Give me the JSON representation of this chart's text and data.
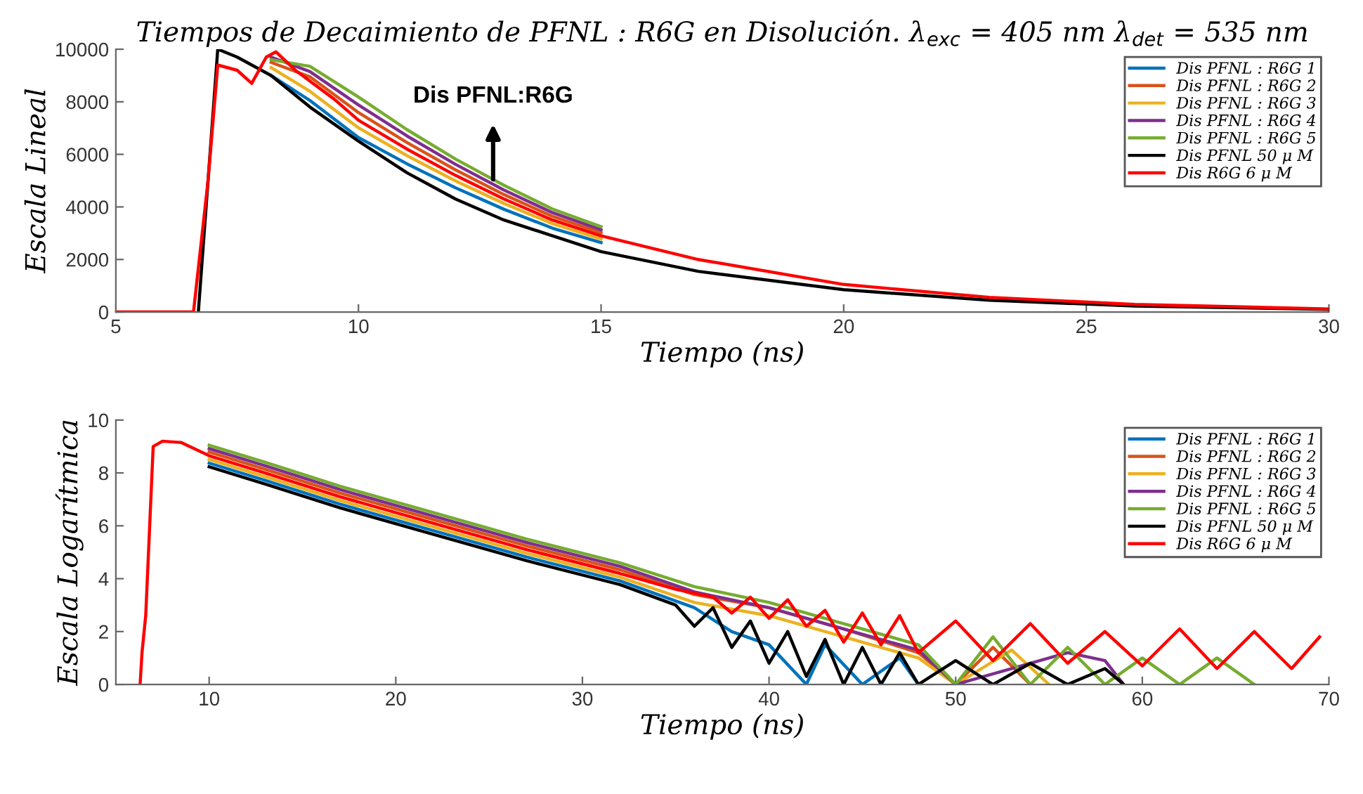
{
  "chart_data": [
    {
      "type": "line",
      "title": "Tiempos de Decaimiento de PFNL : R6G en Disolución. λ$_{exc}$ = 405 nm λ$_{det}$ = 535 nm",
      "xlabel": "Tiempo (ns)",
      "ylabel": "Escala Lineal",
      "xlim": [
        5,
        30
      ],
      "ylim": [
        0,
        10000
      ],
      "xticks": [
        5,
        10,
        15,
        20,
        25,
        30
      ],
      "yticks": [
        0,
        2000,
        4000,
        6000,
        8000,
        10000
      ],
      "legend": "top right",
      "grid": false,
      "marker": "none",
      "line_style": "solid",
      "annotations": [
        "Dis PFNL:R6G"
      ],
      "series": [
        {
          "name": "Dis PFNL : R6G 1",
          "color": "#0072bd",
          "x": [
            8.2,
            9,
            10,
            11,
            12,
            13,
            14,
            15
          ],
          "values": [
            9000,
            8050,
            6640,
            5640,
            4730,
            3910,
            3190,
            2640
          ]
        },
        {
          "name": "Dis PFNL : R6G 2",
          "color": "#d95319",
          "x": [
            8.2,
            9,
            10,
            11,
            12,
            13,
            14,
            15
          ],
          "values": [
            9500,
            8950,
            7590,
            6450,
            5410,
            4470,
            3640,
            3020
          ]
        },
        {
          "name": "Dis PFNL : R6G 3",
          "color": "#edb120",
          "x": [
            8.2,
            9,
            10,
            11,
            12,
            13,
            14,
            15
          ],
          "values": [
            9300,
            8400,
            7010,
            5950,
            4990,
            4130,
            3360,
            2780
          ]
        },
        {
          "name": "Dis PFNL : R6G 4",
          "color": "#7e2f8e",
          "x": [
            8.2,
            9,
            10,
            11,
            12,
            13,
            14,
            15
          ],
          "values": [
            9700,
            9150,
            7880,
            6700,
            5620,
            4640,
            3780,
            3130
          ]
        },
        {
          "name": "Dis PFNL : R6G 5",
          "color": "#77ac30",
          "x": [
            8.2,
            9,
            10,
            11,
            12,
            13,
            14,
            15
          ],
          "values": [
            9600,
            9350,
            8180,
            6940,
            5820,
            4820,
            3920,
            3250
          ]
        },
        {
          "name": "Dis PFNL 50 μ M",
          "color": "#000000",
          "x": [
            6.7,
            7.1,
            7.5,
            8.2,
            9,
            10,
            11,
            12,
            13,
            14,
            15,
            17,
            20,
            23,
            26,
            30
          ],
          "values": [
            0,
            10000,
            9700,
            9000,
            7800,
            6500,
            5300,
            4300,
            3500,
            2900,
            2300,
            1550,
            850,
            450,
            230,
            100
          ]
        },
        {
          "name": "Dis R6G 6 μ M",
          "color": "#ff0000",
          "x": [
            5,
            6.6,
            6.9,
            7.1,
            7.5,
            7.8,
            8.1,
            8.3,
            8.7,
            9.5,
            10,
            11,
            12,
            13,
            14,
            15,
            17,
            20,
            23,
            26,
            30
          ],
          "values": [
            0,
            0,
            5000,
            9400,
            9200,
            8700,
            9700,
            9900,
            9200,
            8100,
            7300,
            6200,
            5200,
            4300,
            3500,
            2900,
            2000,
            1050,
            560,
            290,
            120
          ]
        }
      ]
    },
    {
      "type": "line",
      "xlabel": "Tiempo (ns)",
      "ylabel": "Escala Logarítmica",
      "xlim": [
        5,
        70
      ],
      "ylim": [
        0,
        10
      ],
      "xticks": [
        10,
        20,
        30,
        40,
        50,
        60,
        70
      ],
      "yticks": [
        0,
        2,
        4,
        6,
        8,
        10
      ],
      "legend": "top right",
      "grid": false,
      "marker": "none",
      "line_style": "solid",
      "series": [
        {
          "name": "Dis PFNL : R6G 1",
          "color": "#0072bd",
          "x": [
            10,
            13,
            17,
            22,
            27,
            32,
            36,
            38,
            40,
            42,
            43,
            45,
            47,
            48
          ],
          "values": [
            8.37,
            7.72,
            6.82,
            5.82,
            4.82,
            3.92,
            2.9,
            2.0,
            1.5,
            0,
            1.5,
            0,
            1.0,
            0
          ]
        },
        {
          "name": "Dis PFNL : R6G 2",
          "color": "#d95319",
          "x": [
            10,
            13,
            17,
            22,
            27,
            32,
            36,
            40,
            44,
            48,
            50,
            52,
            54
          ],
          "values": [
            8.79,
            8.14,
            7.24,
            6.24,
            5.24,
            4.34,
            3.4,
            2.9,
            2.1,
            1.2,
            0,
            1.4,
            0
          ]
        },
        {
          "name": "Dis PFNL : R6G 3",
          "color": "#edb120",
          "x": [
            10,
            13,
            17,
            22,
            27,
            32,
            36,
            40,
            44,
            48,
            50,
            53,
            55
          ],
          "values": [
            8.51,
            7.86,
            6.96,
            5.96,
            4.96,
            4.06,
            3.1,
            2.6,
            1.8,
            1.0,
            0,
            1.3,
            0
          ]
        },
        {
          "name": "Dis PFNL : R6G 4",
          "color": "#7e2f8e",
          "x": [
            10,
            13,
            17,
            22,
            27,
            32,
            36,
            40,
            44,
            48,
            50,
            56,
            58,
            59
          ],
          "values": [
            8.92,
            8.27,
            7.37,
            6.37,
            5.37,
            4.47,
            3.5,
            2.9,
            2.1,
            1.3,
            0,
            1.2,
            0.9,
            0
          ]
        },
        {
          "name": "Dis PFNL : R6G 5",
          "color": "#77ac30",
          "x": [
            10,
            13,
            17,
            22,
            27,
            32,
            36,
            40,
            44,
            48,
            50,
            52,
            54,
            56,
            58,
            60,
            62,
            64,
            66
          ],
          "values": [
            9.05,
            8.4,
            7.5,
            6.5,
            5.5,
            4.6,
            3.7,
            3.1,
            2.3,
            1.5,
            0,
            1.8,
            0,
            1.4,
            0,
            1.0,
            0,
            1.0,
            0
          ]
        },
        {
          "name": "Dis PFNL 50 μ M",
          "color": "#000000",
          "x": [
            10,
            13,
            17,
            22,
            27,
            32,
            35,
            36,
            37,
            38,
            39,
            40,
            41,
            42,
            43,
            44,
            45,
            46,
            47,
            48,
            50,
            52,
            54,
            56,
            58,
            59
          ],
          "values": [
            8.23,
            7.58,
            6.68,
            5.68,
            4.68,
            3.78,
            3.0,
            2.2,
            2.9,
            1.4,
            2.4,
            0.8,
            2.0,
            0.3,
            1.7,
            0,
            1.4,
            0,
            1.2,
            0,
            0.9,
            0,
            0.8,
            0,
            0.6,
            0
          ]
        },
        {
          "name": "Dis R6G 6 μ M",
          "color": "#ff0000",
          "x": [
            6.3,
            6.4,
            6.6,
            7.0,
            7.5,
            8.5,
            10,
            13,
            17,
            22,
            27,
            32,
            35,
            37,
            38,
            39,
            40,
            41,
            42,
            43,
            44,
            45,
            46,
            47,
            48,
            50,
            52,
            54,
            56,
            58,
            60,
            62,
            64,
            66,
            68,
            69.5
          ],
          "values": [
            0,
            1.2,
            2.6,
            9.0,
            9.2,
            9.15,
            8.65,
            8.0,
            7.1,
            6.1,
            5.1,
            4.2,
            3.6,
            3.3,
            2.7,
            3.3,
            2.5,
            3.2,
            2.2,
            2.8,
            1.6,
            2.7,
            1.5,
            2.6,
            1.2,
            2.4,
            0.9,
            2.3,
            0.8,
            2.0,
            0.7,
            2.1,
            0.6,
            2.0,
            0.6,
            1.8
          ]
        }
      ]
    }
  ]
}
